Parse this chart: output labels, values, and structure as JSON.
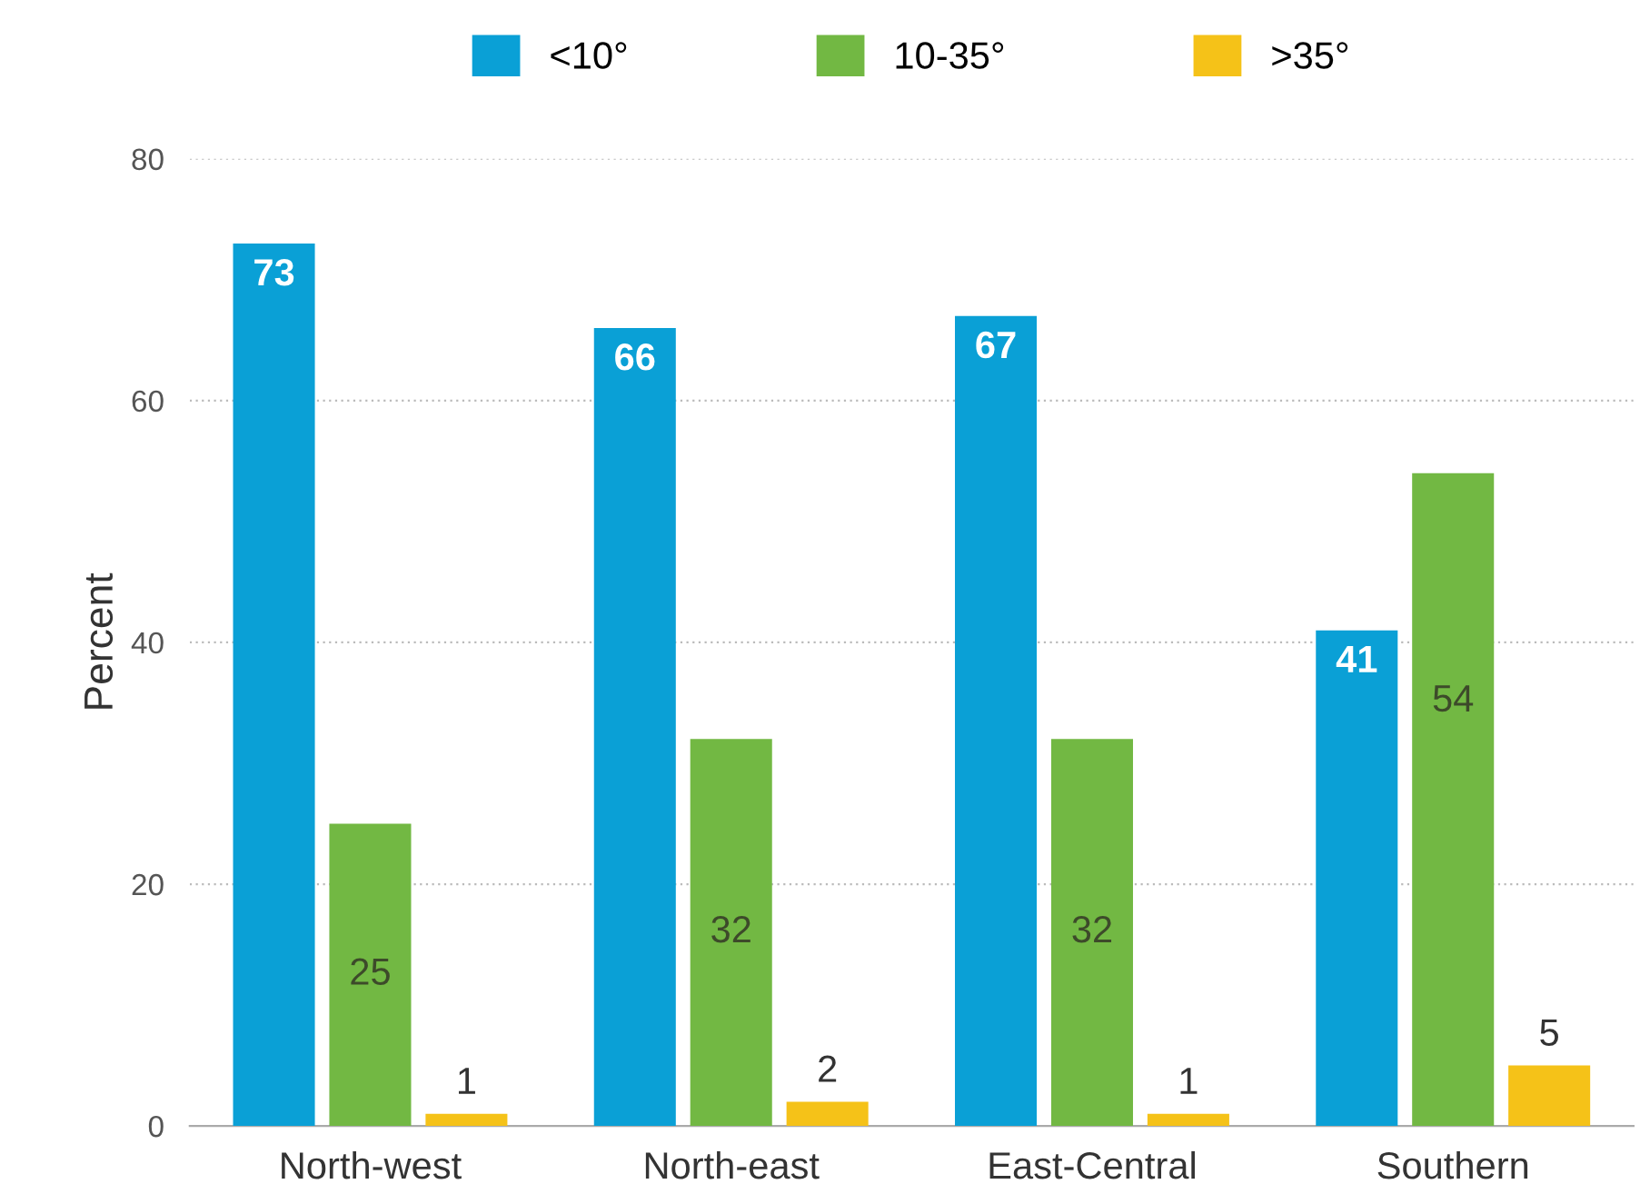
{
  "chart_data": {
    "type": "bar",
    "ylabel": "Percent",
    "categories": [
      "North-west",
      "North-east",
      "East-Central",
      "Southern"
    ],
    "series": [
      {
        "name": "<10°",
        "color": "#0aa0d6",
        "values": [
          73,
          66,
          67,
          41
        ]
      },
      {
        "name": "10-35°",
        "color": "#72b843",
        "values": [
          25,
          32,
          32,
          54
        ]
      },
      {
        "name": ">35°",
        "color": "#f5c218",
        "values": [
          1,
          2,
          1,
          5
        ]
      }
    ],
    "ylim": [
      0,
      80
    ],
    "yticks": [
      0,
      20,
      40,
      60,
      80
    ],
    "grid": "y",
    "legend": "top",
    "data_labels": true
  }
}
